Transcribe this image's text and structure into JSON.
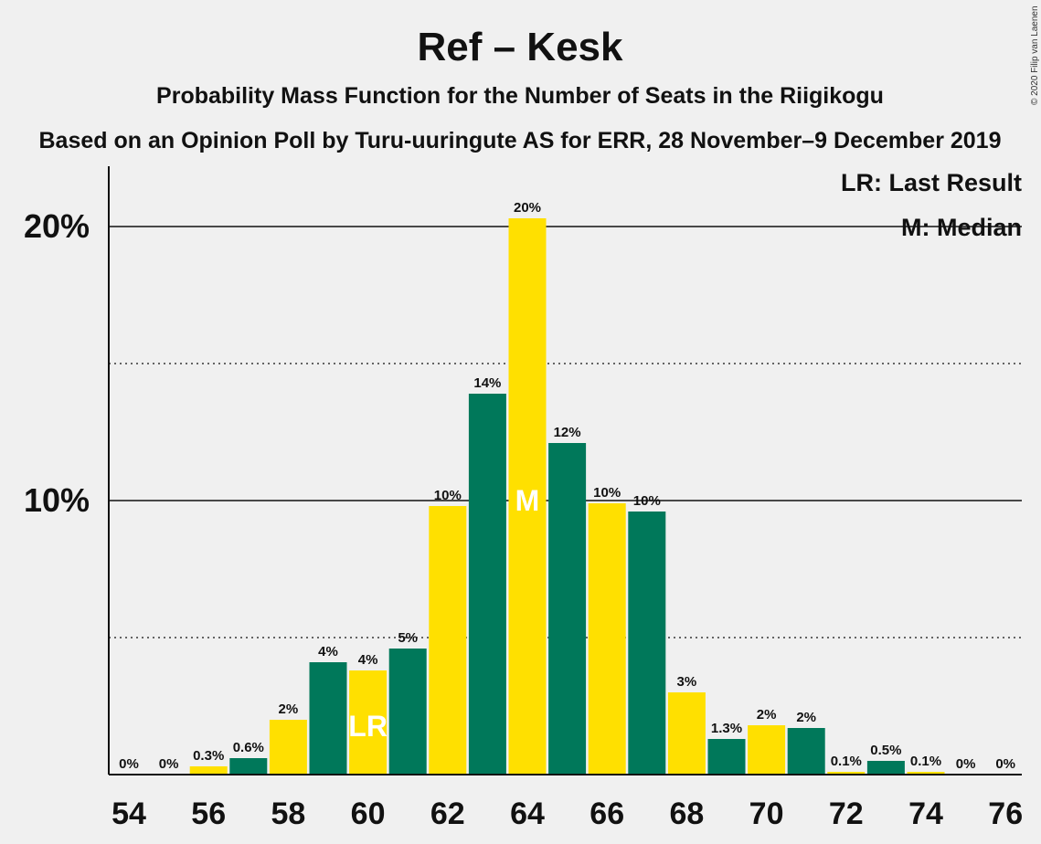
{
  "chart_data": {
    "type": "bar",
    "title": "Ref – Kesk",
    "subtitle": "Probability Mass Function for the Number of Seats in the Riigikogu",
    "subtitle2": "Based on an Opinion Poll by Turu-uuringute AS for ERR, 28 November–9 December 2019",
    "copyright": "© 2020 Filip van Laenen",
    "legend": {
      "lr": "LR: Last Result",
      "m": "M: Median",
      "placement": "top-right"
    },
    "x": [
      54,
      55,
      56,
      57,
      58,
      59,
      60,
      61,
      62,
      63,
      64,
      65,
      66,
      67,
      68,
      69,
      70,
      71,
      72,
      73,
      74,
      75,
      76
    ],
    "values": [
      0,
      0,
      0.3,
      0.6,
      2,
      4.1,
      3.8,
      4.6,
      9.8,
      13.9,
      20.3,
      12.1,
      9.9,
      9.6,
      3,
      1.3,
      1.8,
      1.7,
      0.1,
      0.5,
      0.1,
      0,
      0
    ],
    "labels": [
      "0%",
      "0%",
      "0.3%",
      "0.6%",
      "2%",
      "4%",
      "4%",
      "5%",
      "10%",
      "14%",
      "20%",
      "12%",
      "10%",
      "10%",
      "3%",
      "1.3%",
      "2%",
      "2%",
      "0.1%",
      "0.5%",
      "0.1%",
      "0%",
      "0%"
    ],
    "x_tick_labels": [
      "54",
      "56",
      "58",
      "60",
      "62",
      "64",
      "66",
      "68",
      "70",
      "72",
      "74",
      "76"
    ],
    "y_tick_labels": [
      "10%",
      "20%"
    ],
    "ylim": [
      0,
      22
    ],
    "last_result": {
      "seat": 60,
      "marker": "LR"
    },
    "median": {
      "seat": 64,
      "marker": "M"
    },
    "colors": {
      "yellow": "#FFE000",
      "green": "#00785A",
      "background": "#F0F0F0"
    }
  }
}
